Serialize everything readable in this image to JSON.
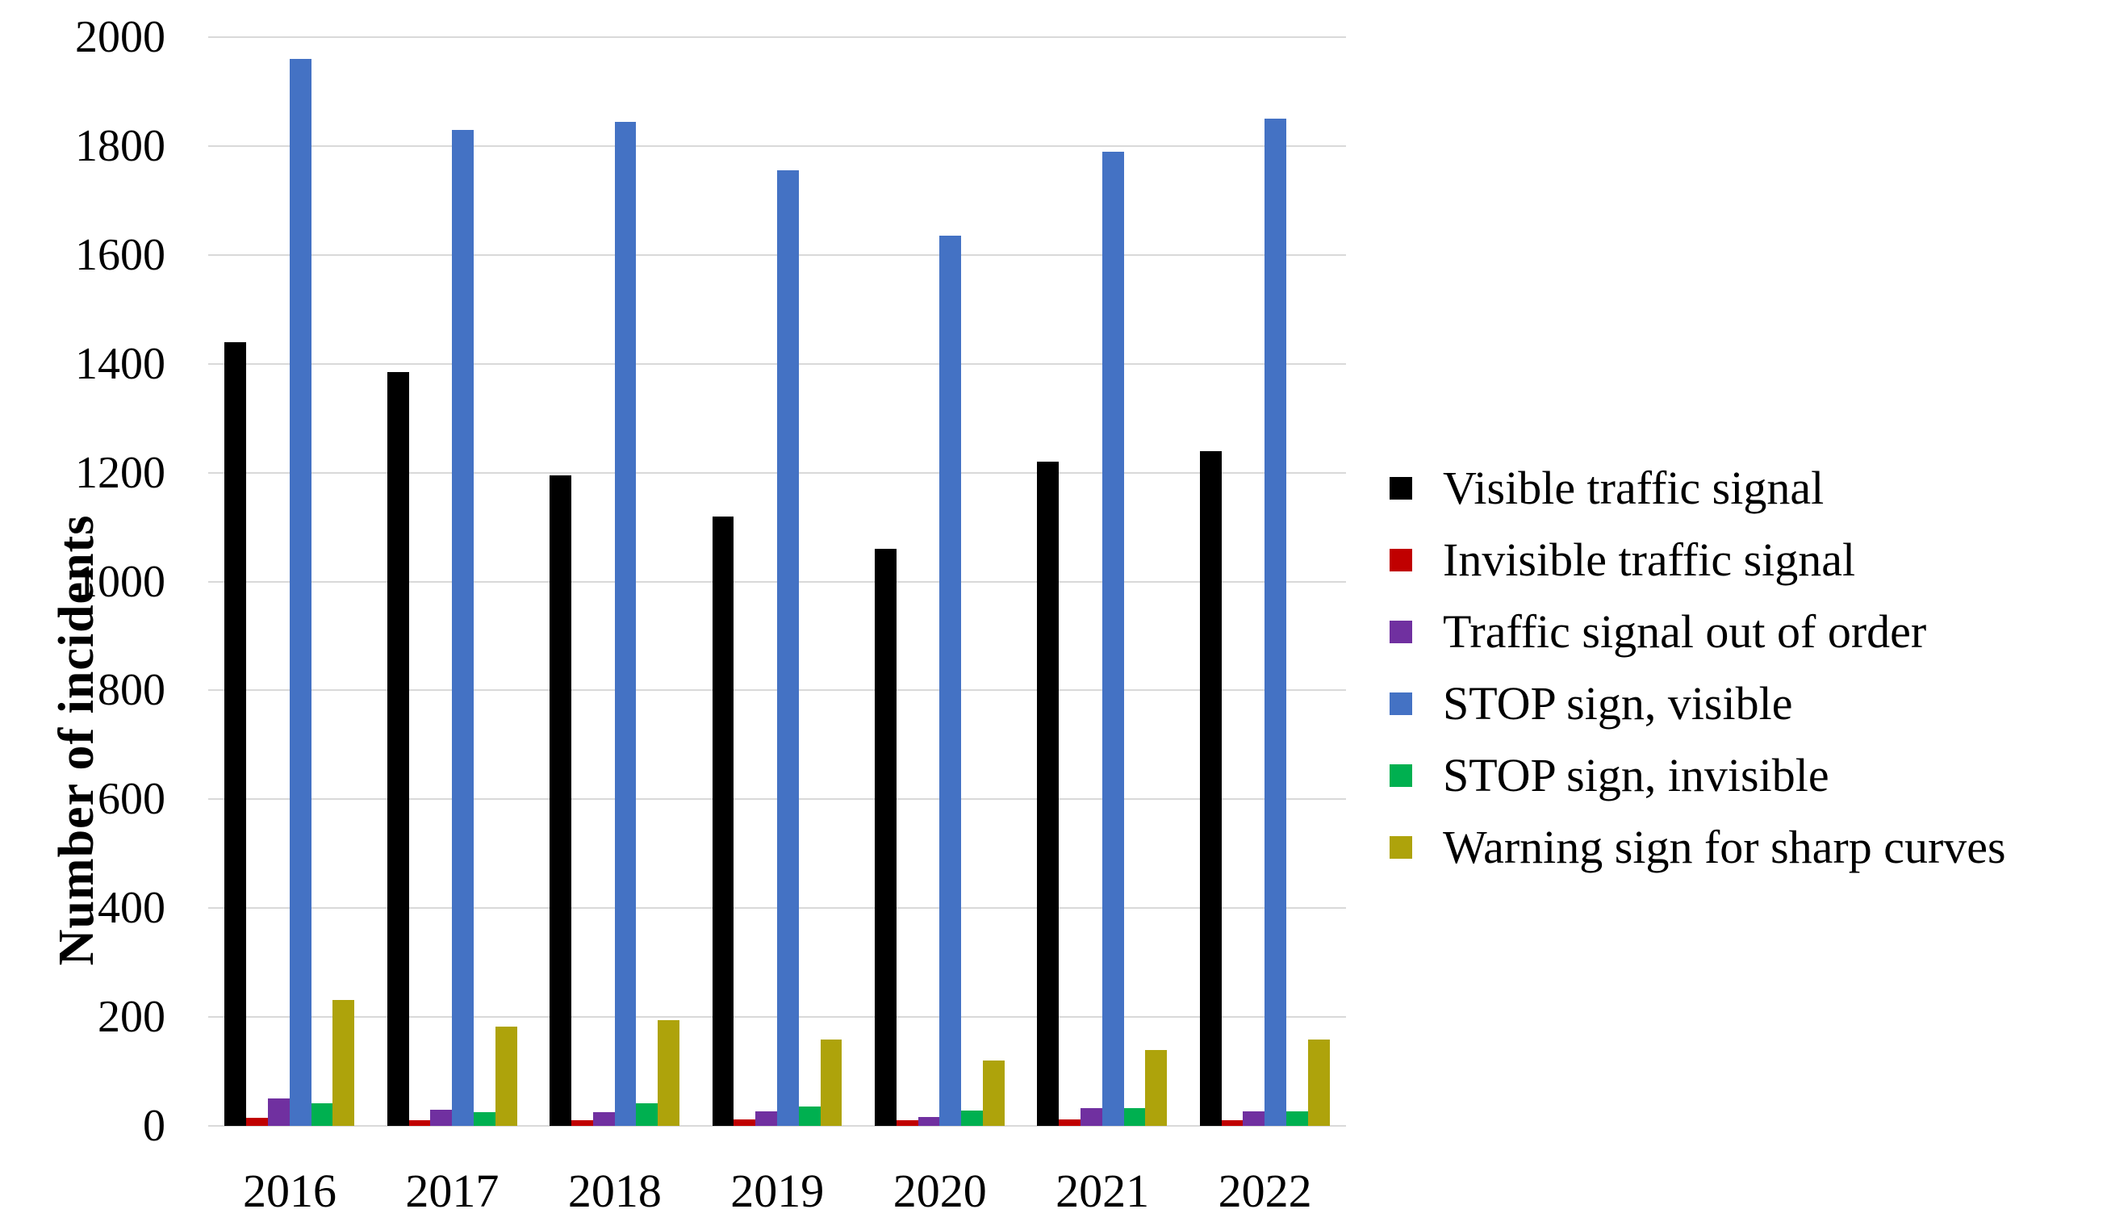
{
  "chart_data": {
    "type": "bar",
    "title": "",
    "xlabel": "",
    "ylabel": "Number of incidents",
    "ylim": [
      0,
      2000
    ],
    "ytick_step": 200,
    "yticks": [
      "0",
      "200",
      "400",
      "600",
      "800",
      "1000",
      "1200",
      "1400",
      "1600",
      "1800",
      "2000"
    ],
    "grid": "horizontal",
    "legend_position": "right",
    "categories": [
      "2016",
      "2017",
      "2018",
      "2019",
      "2020",
      "2021",
      "2022"
    ],
    "series": [
      {
        "name": "Visible traffic signal",
        "color": "#000000",
        "values": [
          1440,
          1385,
          1195,
          1120,
          1060,
          1220,
          1240
        ]
      },
      {
        "name": "Invisible traffic signal",
        "color": "#c00000",
        "values": [
          15,
          11,
          10,
          12,
          11,
          12,
          11
        ]
      },
      {
        "name": "Traffic signal out of order",
        "color": "#7030a0",
        "values": [
          50,
          29,
          25,
          27,
          17,
          32,
          26
        ]
      },
      {
        "name": "STOP sign, visible",
        "color": "#4472c4",
        "values": [
          1960,
          1830,
          1845,
          1755,
          1635,
          1790,
          1850
        ]
      },
      {
        "name": "STOP sign, invisible",
        "color": "#00b050",
        "values": [
          42,
          25,
          41,
          36,
          28,
          32,
          27
        ]
      },
      {
        "name": "Warning sign for sharp curves",
        "color": "#aea30b",
        "values": [
          232,
          182,
          194,
          158,
          120,
          140,
          158
        ]
      }
    ]
  },
  "colors": {
    "gridline": "#d9d9d9",
    "background": "#ffffff",
    "text": "#000000"
  }
}
